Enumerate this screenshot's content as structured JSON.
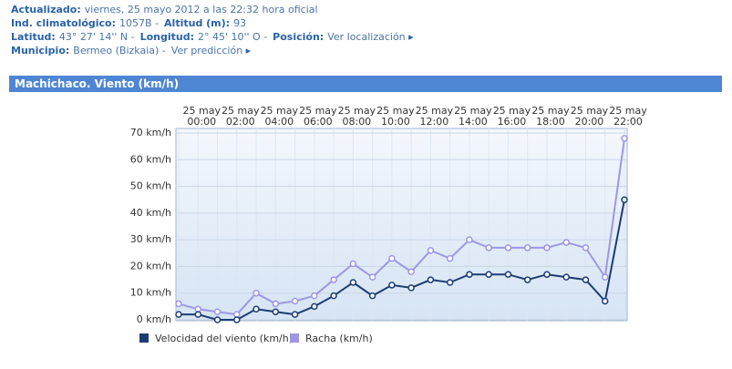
{
  "header": {
    "rows": [
      [
        {
          "label": "Actualizado:",
          "value": "viernes, 25 mayo 2012 a las 22:32 hora oficial"
        }
      ],
      [
        {
          "label": "Ind. climatológico:",
          "value": "1057B -"
        },
        {
          "label": "Altitud (m):",
          "value": "93"
        }
      ],
      [
        {
          "label": "Latitud:",
          "value": "43° 27' 14'' N -"
        },
        {
          "label": "Longitud:",
          "value": "2° 45' 10'' O -"
        },
        {
          "label": "Posición:",
          "link": "Ver localización"
        }
      ],
      [
        {
          "label": "Municipio:",
          "value": "Bermeo (Bizkaia) -",
          "link": "Ver predicción"
        }
      ]
    ]
  },
  "chart_data": {
    "type": "line",
    "title": "Machichaco. Viento (km/h)",
    "categories": [
      null,
      "25 may 00:00",
      null,
      "25 may 02:00",
      null,
      "25 may 04:00",
      null,
      "25 may 06:00",
      null,
      "25 may 08:00",
      null,
      "25 may 10:00",
      null,
      "25 may 12:00",
      null,
      "25 may 14:00",
      null,
      "25 may 16:00",
      null,
      "25 may 18:00",
      null,
      "25 may 20:00",
      null,
      "25 may 22:00"
    ],
    "series": [
      {
        "name": "Velocidad del viento (km/h)",
        "color": "#1c3d73",
        "values": [
          2,
          2,
          0,
          0,
          4,
          3,
          2,
          5,
          9,
          14,
          9,
          13,
          12,
          15,
          14,
          17,
          17,
          17,
          15,
          17,
          16,
          15,
          7,
          45
        ]
      },
      {
        "name": "Racha (km/h)",
        "color": "#9d97e6",
        "values": [
          6,
          4,
          3,
          2,
          10,
          6,
          7,
          9,
          15,
          21,
          16,
          23,
          18,
          26,
          23,
          30,
          27,
          27,
          27,
          27,
          29,
          27,
          16,
          68
        ]
      }
    ],
    "ylim": [
      0,
      70
    ],
    "yticks": [
      {
        "value": 0,
        "label": "0 km/h"
      },
      {
        "value": 10,
        "label": "10 km/h"
      },
      {
        "value": 20,
        "label": "20 km/h"
      },
      {
        "value": 30,
        "label": "30 km/h"
      },
      {
        "value": 40,
        "label": "40 km/h"
      },
      {
        "value": 50,
        "label": "50 km/h"
      },
      {
        "value": 60,
        "label": "60 km/h"
      },
      {
        "value": 70,
        "label": "70 km/h"
      }
    ],
    "grid": true
  }
}
